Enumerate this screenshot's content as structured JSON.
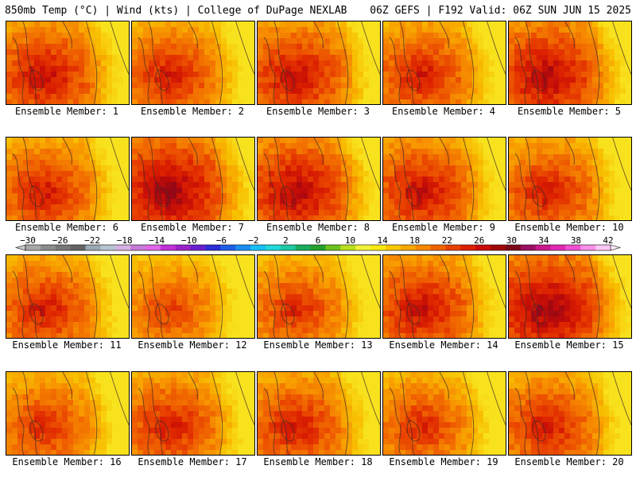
{
  "header": {
    "left": "850mb Temp (°C) | Wind (kts) | College of DuPage NEXLAB",
    "right": "06Z GEFS | F192 Valid: 06Z SUN JUN 15 2025"
  },
  "panels": [
    {
      "label": "Ensemble Member: 1",
      "peak": 28
    },
    {
      "label": "Ensemble Member: 2",
      "peak": 27
    },
    {
      "label": "Ensemble Member: 3",
      "peak": 28
    },
    {
      "label": "Ensemble Member: 4",
      "peak": 27
    },
    {
      "label": "Ensemble Member: 5",
      "peak": 29
    },
    {
      "label": "Ensemble Member: 6",
      "peak": 27
    },
    {
      "label": "Ensemble Member: 7",
      "peak": 30
    },
    {
      "label": "Ensemble Member: 8",
      "peak": 29
    },
    {
      "label": "Ensemble Member: 9",
      "peak": 28
    },
    {
      "label": "Ensemble Member: 10",
      "peak": 27
    },
    {
      "label": "Ensemble Member: 11",
      "peak": 27
    },
    {
      "label": "Ensemble Member: 12",
      "peak": 25
    },
    {
      "label": "Ensemble Member: 13",
      "peak": 26
    },
    {
      "label": "Ensemble Member: 14",
      "peak": 28
    },
    {
      "label": "Ensemble Member: 15",
      "peak": 30
    },
    {
      "label": "Ensemble Member: 16",
      "peak": 26
    },
    {
      "label": "Ensemble Member: 17",
      "peak": 27
    },
    {
      "label": "Ensemble Member: 18",
      "peak": 27
    },
    {
      "label": "Ensemble Member: 19",
      "peak": 26
    },
    {
      "label": "Ensemble Member: 20",
      "peak": 27
    }
  ],
  "colorbar": {
    "tick_labels": [
      "−30",
      "−26",
      "−22",
      "−18",
      "−14",
      "−10",
      "−6",
      "−2",
      "2",
      "6",
      "10",
      "14",
      "18",
      "22",
      "26",
      "30",
      "34",
      "38",
      "42"
    ],
    "colors": [
      "#a8a8a8",
      "#8c8c8c",
      "#787878",
      "#646464",
      "#9aa7b4",
      "#b7c3cf",
      "#d7b0e2",
      "#c77ad6",
      "#e066e8",
      "#c030d6",
      "#9a22c8",
      "#6a1fd0",
      "#2b2fd6",
      "#1f5ee6",
      "#1a8ff0",
      "#18c0f5",
      "#22d8d8",
      "#1fc9a4",
      "#1aac5c",
      "#24a02c",
      "#6cc21e",
      "#b8e020",
      "#f2f23a",
      "#f8ea10",
      "#f8c800",
      "#f8a800",
      "#f88800",
      "#f06400",
      "#e84000",
      "#dc2000",
      "#c80a0a",
      "#a00808",
      "#7a0a1a",
      "#9a1060",
      "#c81a8c",
      "#e02ab4",
      "#f050d0",
      "#f890e8",
      "#fcc8f4"
    ]
  }
}
